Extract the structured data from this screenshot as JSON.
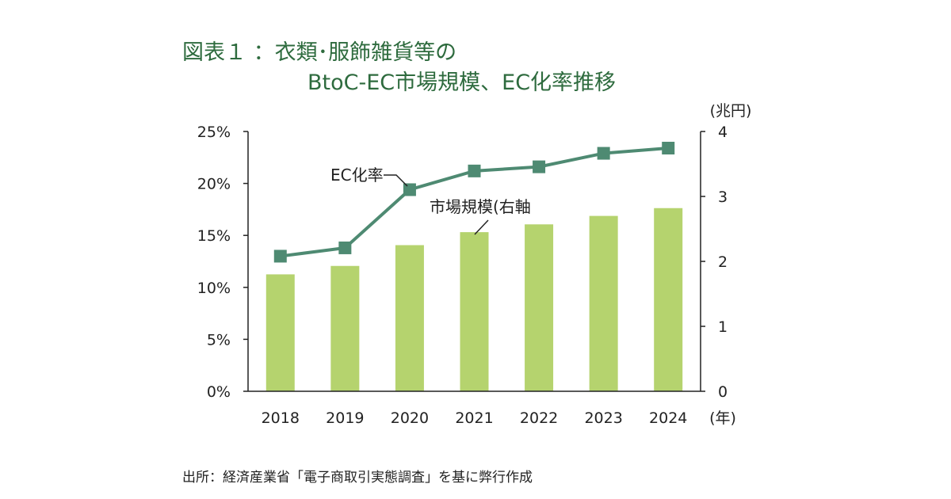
{
  "title": {
    "line1": "図表１ ：衣類･服飾雑貨等の",
    "line2": "BtoC-EC市場規模、EC化率推移"
  },
  "source": "出所：経済産業省「電子商取引実態調査」を基に弊行作成",
  "colors": {
    "title": "#2e6b3e",
    "bar": "#b5d36e",
    "line": "#4e8a72",
    "axis": "#222222"
  },
  "chart_data": {
    "type": "bar",
    "categories": [
      "2018",
      "2019",
      "2020",
      "2021",
      "2022",
      "2023",
      "2024"
    ],
    "x_unit_label": "(年)",
    "series": [
      {
        "name": "市場規模(右軸",
        "type": "bar",
        "axis": "right",
        "values": [
          1.8,
          1.93,
          2.25,
          2.45,
          2.57,
          2.7,
          2.82
        ]
      },
      {
        "name": "EC化率",
        "type": "line",
        "axis": "left",
        "values": [
          13.0,
          13.8,
          19.4,
          21.2,
          21.6,
          22.9,
          23.4
        ]
      }
    ],
    "left_axis": {
      "ylim": [
        0,
        25
      ],
      "ticks": [
        "0%",
        "5%",
        "10%",
        "15%",
        "20%",
        "25%"
      ]
    },
    "right_axis": {
      "unit_label": "(兆円)",
      "ylim": [
        0,
        4
      ],
      "ticks": [
        "0",
        "1",
        "2",
        "3",
        "4"
      ]
    },
    "annotations": [
      "EC化率",
      "市場規模(右軸"
    ],
    "grid": false,
    "legend": "none"
  }
}
